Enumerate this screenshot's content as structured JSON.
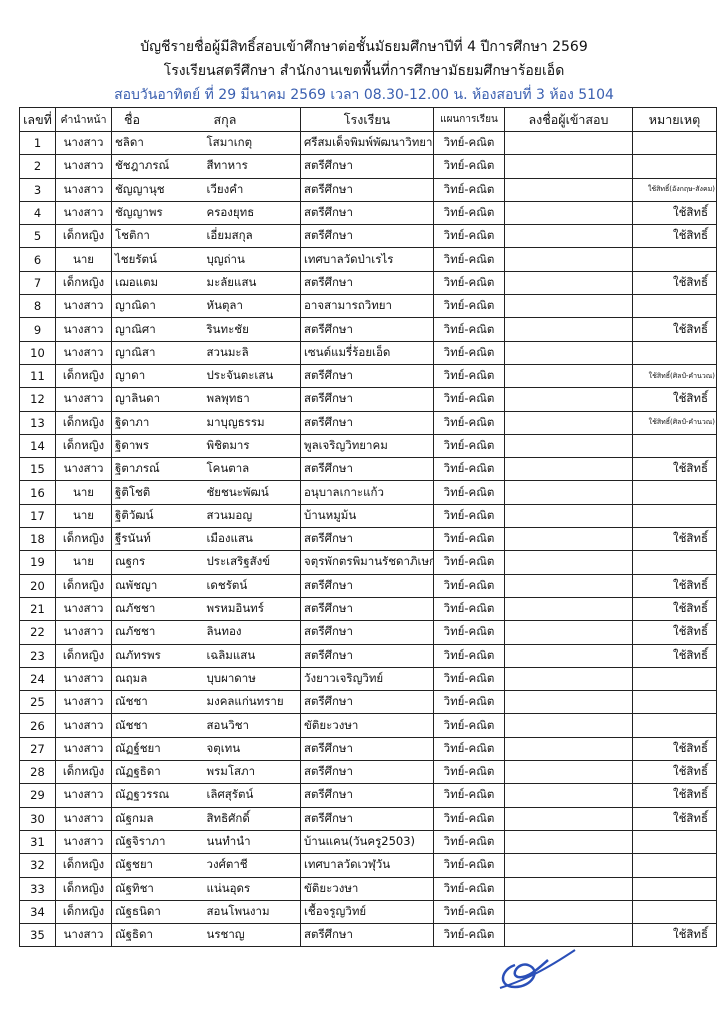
{
  "title_line1": "บัญชีรายชื่อผู้มีสิทธิ์สอบเข้าศึกษาต่อชั้นมัธยมศึกษาปีที่ 4 ปีการศึกษา 2569",
  "title_line2": "โรงเรียนสตรีศึกษา สำนักงานเขตพื้นที่การศึกษามัธยมศึกษาร้อยเอ็ด",
  "title_line3": "สอบวันอาทิตย์ ที่ 29 มีนาคม 2569 เวลา 08.30-12.00 น.   ห้องสอบที่  3  ห้อง 5104",
  "accent_color": "#3a5fb0",
  "signature_color": "#2a4fb8",
  "table": {
    "headers": [
      "เลขที่",
      "คำนำหน้า",
      "ชื่อ",
      "สกุล",
      "โรงเรียน",
      "แผนการเรียน",
      "ลงชื่อผู้เข้าสอบ",
      "หมายเหตุ"
    ],
    "rows": [
      [
        "1",
        "นางสาว",
        "ชลิดา",
        "โสมาเกตุ",
        "ศรีสมเด็จพิมพ์พัฒนาวิทยา",
        "วิทย์-คณิต",
        ""
      ],
      [
        "2",
        "นางสาว",
        "ชัชฎาภรณ์",
        "สีทาหาร",
        "สตรีศึกษา",
        "วิทย์-คณิต",
        ""
      ],
      [
        "3",
        "นางสาว",
        "ชัญญานุช",
        "เวียงคำ",
        "สตรีศึกษา",
        "วิทย์-คณิต",
        "ใช้สิทธิ์(อังกฤษ-สังคม)"
      ],
      [
        "4",
        "นางสาว",
        "ชัญญาพร",
        "ครองยุทธ",
        "สตรีศึกษา",
        "วิทย์-คณิต",
        "ใช้สิทธิ์"
      ],
      [
        "5",
        "เด็กหญิง",
        "โชติกา",
        "เอี่ยมสกุล",
        "สตรีศึกษา",
        "วิทย์-คณิต",
        "ใช้สิทธิ์"
      ],
      [
        "6",
        "นาย",
        "ไชยรัตน์",
        "บุญถ่าน",
        "เทศบาลวัดป่าเรไร",
        "วิทย์-คณิต",
        ""
      ],
      [
        "7",
        "เด็กหญิง",
        "เฌอแตม",
        "มะลัยแสน",
        "สตรีศึกษา",
        "วิทย์-คณิต",
        "ใช้สิทธิ์"
      ],
      [
        "8",
        "นางสาว",
        "ญาณิดา",
        "หันตุลา",
        "อาจสามารถวิทยา",
        "วิทย์-คณิต",
        ""
      ],
      [
        "9",
        "นางสาว",
        "ญาณิศา",
        "รินทะชัย",
        "สตรีศึกษา",
        "วิทย์-คณิต",
        "ใช้สิทธิ์"
      ],
      [
        "10",
        "นางสาว",
        "ญาณิสา",
        "สวนมะลิ",
        "เซนต์แมรี่ร้อยเอ็ด",
        "วิทย์-คณิต",
        ""
      ],
      [
        "11",
        "เด็กหญิง",
        "ญาดา",
        "ประจันตะเสน",
        "สตรีศึกษา",
        "วิทย์-คณิต",
        "ใช้สิทธิ์(ศิลป์-คำนวณ)"
      ],
      [
        "12",
        "นางสาว",
        "ญาลินดา",
        "พลพุทธา",
        "สตรีศึกษา",
        "วิทย์-คณิต",
        "ใช้สิทธิ์"
      ],
      [
        "13",
        "เด็กหญิง",
        "ฐิดาภา",
        "มาบุญธรรม",
        "สตรีศึกษา",
        "วิทย์-คณิต",
        "ใช้สิทธิ์(ศิลป์-คำนวณ)"
      ],
      [
        "14",
        "เด็กหญิง",
        "ฐิดาพร",
        "พิชิตมาร",
        "พูลเจริญวิทยาคม",
        "วิทย์-คณิต",
        ""
      ],
      [
        "15",
        "นางสาว",
        "ฐิตาภรณ์",
        "โคนตาล",
        "สตรีศึกษา",
        "วิทย์-คณิต",
        "ใช้สิทธิ์"
      ],
      [
        "16",
        "นาย",
        "ฐิติโชติ",
        "ชัยชนะพัฒน์",
        "อนุบาลเกาะแก้ว",
        "วิทย์-คณิต",
        ""
      ],
      [
        "17",
        "นาย",
        "ฐิติวัฒน์",
        "สวนมอญ",
        "บ้านหมูม้น",
        "วิทย์-คณิต",
        ""
      ],
      [
        "18",
        "เด็กหญิง",
        "ฐีรนันท์",
        "เมืองแสน",
        "สตรีศึกษา",
        "วิทย์-คณิต",
        "ใช้สิทธิ์"
      ],
      [
        "19",
        "นาย",
        "ณฐกร",
        "ประเสริฐสังข์",
        "จตุรพักตรพิมานรัชดาภิเษก",
        "วิทย์-คณิต",
        ""
      ],
      [
        "20",
        "เด็กหญิง",
        "ณพัชญา",
        "เดชรัตน์",
        "สตรีศึกษา",
        "วิทย์-คณิต",
        "ใช้สิทธิ์"
      ],
      [
        "21",
        "นางสาว",
        "ณภัชชา",
        "พรหมอินทร์",
        "สตรีศึกษา",
        "วิทย์-คณิต",
        "ใช้สิทธิ์"
      ],
      [
        "22",
        "นางสาว",
        "ณภัชชา",
        "ลินทอง",
        "สตรีศึกษา",
        "วิทย์-คณิต",
        "ใช้สิทธิ์"
      ],
      [
        "23",
        "เด็กหญิง",
        "ณภัทรพร",
        "เฉลิมแสน",
        "สตรีศึกษา",
        "วิทย์-คณิต",
        "ใช้สิทธิ์"
      ],
      [
        "24",
        "นางสาว",
        "ณฤมล",
        "บุบผาดาษ",
        "วังยาวเจริญวิทย์",
        "วิทย์-คณิต",
        ""
      ],
      [
        "25",
        "นางสาว",
        "ณัชชา",
        "มงคลแก่นทราย",
        "สตรีศึกษา",
        "วิทย์-คณิต",
        ""
      ],
      [
        "26",
        "นางสาว",
        "ณัชชา",
        "สอนวิชา",
        "ขัติยะวงษา",
        "วิทย์-คณิต",
        ""
      ],
      [
        "27",
        "นางสาว",
        "ณัฏฐ์ชยา",
        "จตุเทน",
        "สตรีศึกษา",
        "วิทย์-คณิต",
        "ใช้สิทธิ์"
      ],
      [
        "28",
        "เด็กหญิง",
        "ณัฏฐธิดา",
        "พรมโสภา",
        "สตรีศึกษา",
        "วิทย์-คณิต",
        "ใช้สิทธิ์"
      ],
      [
        "29",
        "นางสาว",
        "ณัฏฐวรรณ",
        "เลิศสุรัตน์",
        "สตรีศึกษา",
        "วิทย์-คณิต",
        "ใช้สิทธิ์"
      ],
      [
        "30",
        "นางสาว",
        "ณัฐกมล",
        "สิทธิศักดิ์",
        "สตรีศึกษา",
        "วิทย์-คณิต",
        "ใช้สิทธิ์"
      ],
      [
        "31",
        "นางสาว",
        "ณัฐจิราภา",
        "นนทำนำ",
        "บ้านแคน(วันครู2503)",
        "วิทย์-คณิต",
        ""
      ],
      [
        "32",
        "เด็กหญิง",
        "ณัฐชยา",
        "วงศ์ตาชี",
        "เทศบาลวัดเวฬุวัน",
        "วิทย์-คณิต",
        ""
      ],
      [
        "33",
        "เด็กหญิง",
        "ณัฐทิชา",
        "แน่นอุดร",
        "ขัติยะวงษา",
        "วิทย์-คณิต",
        ""
      ],
      [
        "34",
        "เด็กหญิง",
        "ณัฐธนิดา",
        "สอนโพนงาม",
        "เชื้อจรูญวิทย์",
        "วิทย์-คณิต",
        ""
      ],
      [
        "35",
        "นางสาว",
        "ณัฐธิดา",
        "นรชาญ",
        "สตรีศึกษา",
        "วิทย์-คณิต",
        "ใช้สิทธิ์"
      ]
    ]
  }
}
